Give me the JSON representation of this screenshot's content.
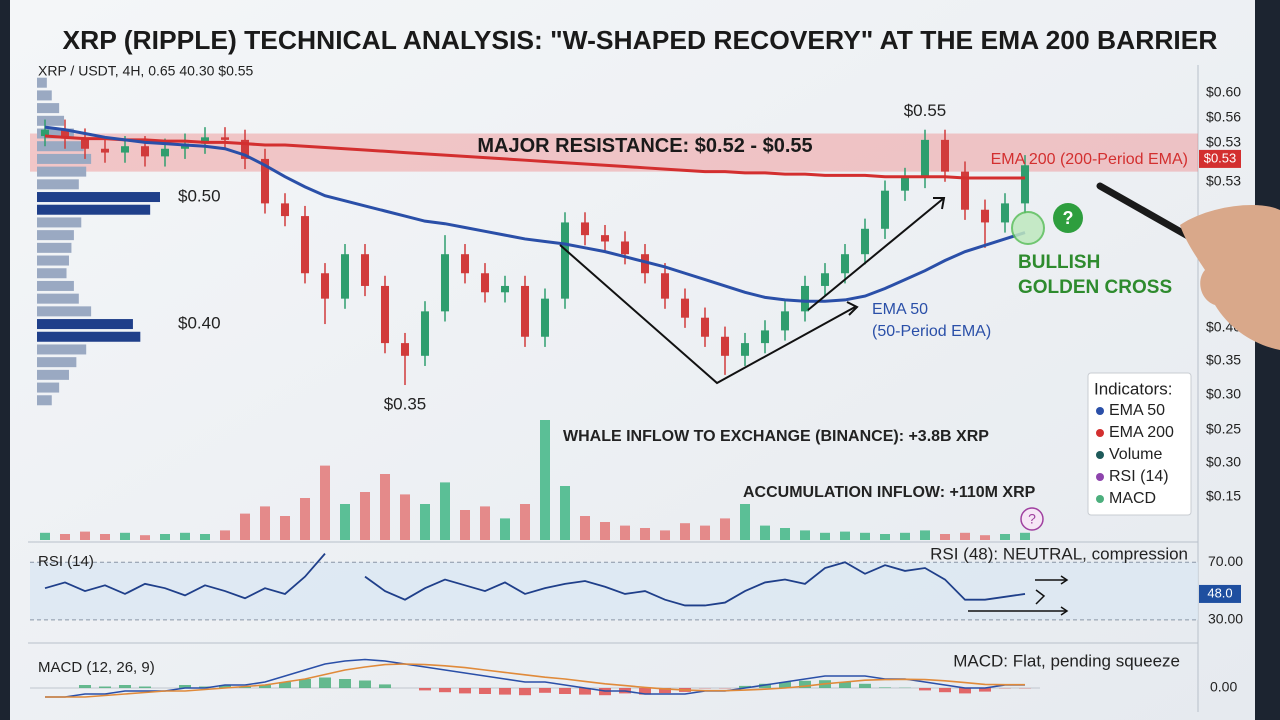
{
  "chart_data": [
    {
      "type": "candlestick",
      "title": "XRP (RIPPLE) TECHNICAL ANALYSIS: \"W-SHAPED RECOVERY\" AT THE EMA 200 BARRIER",
      "subtitle": "XRP / USDT, 4H, 0.65 40.30 $0.55",
      "ylim": [
        0.23,
        0.6
      ],
      "up_color": "#2f9e6e",
      "down_color": "#d13b3b",
      "opens": [
        0.548,
        0.553,
        0.546,
        0.538,
        0.535,
        0.54,
        0.532,
        0.538,
        0.542,
        0.547,
        0.545,
        0.53,
        0.495,
        0.485,
        0.44,
        0.42,
        0.455,
        0.43,
        0.385,
        0.375,
        0.41,
        0.455,
        0.44,
        0.425,
        0.43,
        0.39,
        0.42,
        0.48,
        0.47,
        0.465,
        0.455,
        0.44,
        0.42,
        0.405,
        0.39,
        0.375,
        0.385,
        0.395,
        0.41,
        0.43,
        0.44,
        0.455,
        0.475,
        0.505,
        0.515,
        0.545,
        0.52,
        0.49,
        0.48,
        0.495
      ],
      "highs": [
        0.561,
        0.561,
        0.554,
        0.546,
        0.548,
        0.548,
        0.546,
        0.55,
        0.555,
        0.555,
        0.553,
        0.538,
        0.503,
        0.493,
        0.448,
        0.463,
        0.463,
        0.438,
        0.393,
        0.418,
        0.47,
        0.463,
        0.448,
        0.438,
        0.438,
        0.428,
        0.488,
        0.488,
        0.478,
        0.473,
        0.463,
        0.448,
        0.428,
        0.413,
        0.398,
        0.393,
        0.403,
        0.418,
        0.438,
        0.448,
        0.463,
        0.483,
        0.513,
        0.523,
        0.553,
        0.553,
        0.528,
        0.498,
        0.503,
        0.533
      ],
      "lows": [
        0.54,
        0.538,
        0.53,
        0.527,
        0.527,
        0.524,
        0.524,
        0.53,
        0.534,
        0.537,
        0.522,
        0.487,
        0.477,
        0.432,
        0.4,
        0.412,
        0.422,
        0.377,
        0.352,
        0.367,
        0.402,
        0.432,
        0.417,
        0.417,
        0.382,
        0.382,
        0.412,
        0.462,
        0.457,
        0.447,
        0.432,
        0.412,
        0.397,
        0.382,
        0.36,
        0.367,
        0.377,
        0.387,
        0.402,
        0.422,
        0.432,
        0.447,
        0.467,
        0.497,
        0.507,
        0.512,
        0.482,
        0.46,
        0.472,
        0.487
      ],
      "closes": [
        0.553,
        0.546,
        0.538,
        0.535,
        0.54,
        0.532,
        0.538,
        0.542,
        0.547,
        0.545,
        0.53,
        0.495,
        0.485,
        0.44,
        0.42,
        0.455,
        0.43,
        0.385,
        0.375,
        0.41,
        0.455,
        0.44,
        0.425,
        0.43,
        0.39,
        0.42,
        0.48,
        0.47,
        0.465,
        0.455,
        0.44,
        0.42,
        0.405,
        0.39,
        0.375,
        0.385,
        0.395,
        0.41,
        0.43,
        0.44,
        0.455,
        0.475,
        0.505,
        0.515,
        0.545,
        0.52,
        0.49,
        0.48,
        0.495,
        0.525
      ],
      "high_labels": [
        null,
        null,
        null,
        null,
        null,
        null,
        null,
        null,
        null,
        null,
        null,
        null,
        null,
        null,
        null,
        null,
        null,
        null,
        null,
        null,
        null,
        null,
        null,
        null,
        null,
        null,
        null,
        null,
        null,
        null,
        null,
        null,
        null,
        null,
        null,
        null,
        null,
        null,
        null,
        null,
        null,
        null,
        null,
        null,
        "$0.55",
        null,
        null,
        null,
        null,
        null
      ],
      "low_labels": [
        null,
        null,
        null,
        null,
        null,
        null,
        null,
        null,
        null,
        null,
        null,
        null,
        null,
        null,
        null,
        null,
        null,
        null,
        "$0.35",
        null,
        null,
        null,
        null,
        null,
        null,
        null,
        null,
        null,
        null,
        null,
        null,
        null,
        null,
        null,
        null,
        null,
        null,
        null,
        null,
        null,
        null,
        null,
        null,
        null,
        null,
        null,
        null,
        null,
        null,
        null
      ],
      "series": [
        {
          "label": [
            "EMA 200 (200-Period EMA)"
          ],
          "color": "#d32f2f",
          "values": [
            0.548,
            0.547,
            0.546,
            0.546,
            0.545,
            0.545,
            0.544,
            0.544,
            0.543,
            0.543,
            0.542,
            0.541,
            0.541,
            0.54,
            0.539,
            0.538,
            0.537,
            0.536,
            0.535,
            0.534,
            0.533,
            0.532,
            0.531,
            0.53,
            0.529,
            0.528,
            0.527,
            0.526,
            0.525,
            0.524,
            0.523,
            0.522,
            0.521,
            0.52,
            0.52,
            0.519,
            0.519,
            0.518,
            0.518,
            0.517,
            0.517,
            0.517,
            0.516,
            0.516,
            0.516,
            0.516,
            0.515,
            0.515,
            0.515,
            0.515
          ]
        },
        {
          "label": [
            "EMA 50",
            "(50-Period EMA)"
          ],
          "color": "#2a4fa8",
          "values": [
            0.555,
            0.553,
            0.55,
            0.547,
            0.545,
            0.543,
            0.542,
            0.541,
            0.54,
            0.538,
            0.533,
            0.525,
            0.516,
            0.508,
            0.501,
            0.497,
            0.493,
            0.489,
            0.485,
            0.481,
            0.479,
            0.476,
            0.473,
            0.47,
            0.467,
            0.465,
            0.463,
            0.46,
            0.457,
            0.453,
            0.449,
            0.445,
            0.44,
            0.435,
            0.43,
            0.425,
            0.421,
            0.419,
            0.418,
            0.418,
            0.419,
            0.422,
            0.428,
            0.435,
            0.442,
            0.45,
            0.457,
            0.462,
            0.467,
            0.472
          ]
        }
      ],
      "zone": {
        "from": 0.52,
        "to": 0.55,
        "label": "MAJOR RESISTANCE: $0.52 - $0.55",
        "color": "#f08080"
      },
      "current_price": {
        "value": 0.53,
        "label": "$0.53"
      },
      "axis_labels": [
        "$0.60",
        "$0.56",
        "$0.53",
        "$0.53",
        "$0.40",
        "$0.35",
        "$0.30",
        "$0.25",
        "$0.30",
        "$0.15"
      ],
      "profile": {
        "xlim": [
          0,
          100
        ],
        "levels": [
          0.59,
          0.58,
          0.57,
          0.56,
          0.55,
          0.54,
          0.53,
          0.52,
          0.51,
          0.5,
          0.49,
          0.48,
          0.47,
          0.46,
          0.45,
          0.44,
          0.43,
          0.42,
          0.41,
          0.4,
          0.39,
          0.38,
          0.37,
          0.36,
          0.35,
          0.34
        ],
        "values": [
          8,
          12,
          18,
          22,
          30,
          38,
          44,
          40,
          34,
          100,
          92,
          36,
          30,
          28,
          26,
          24,
          30,
          34,
          44,
          78,
          84,
          40,
          32,
          26,
          18,
          12
        ],
        "colors": [
          "#9aa9c2",
          "#9aa9c2",
          "#9aa9c2",
          "#9aa9c2",
          "#9aa9c2",
          "#9aa9c2",
          "#9aa9c2",
          "#9aa9c2",
          "#9aa9c2",
          "#1f3f8a",
          "#1f3f8a",
          "#9aa9c2",
          "#9aa9c2",
          "#9aa9c2",
          "#9aa9c2",
          "#9aa9c2",
          "#9aa9c2",
          "#9aa9c2",
          "#9aa9c2",
          "#1f3f8a",
          "#1f3f8a",
          "#9aa9c2",
          "#9aa9c2",
          "#9aa9c2",
          "#9aa9c2",
          "#9aa9c2"
        ],
        "labels": [
          {
            "value": 0.5,
            "label": "$0.50"
          },
          {
            "value": 0.4,
            "label": "$0.40"
          }
        ]
      },
      "cross_label": [
        "BULLISH",
        "GOLDEN CROSS"
      ],
      "marker_texts": [
        "?",
        "?"
      ],
      "legend": {
        "title": "Indicators:",
        "items": [
          {
            "name": "EMA 50",
            "color": "#2a4fa8"
          },
          {
            "name": "EMA 200",
            "color": "#d32f2f"
          },
          {
            "name": "Volume",
            "color": "#1e5a5a"
          },
          {
            "name": "RSI (14)",
            "color": "#8e44ad"
          },
          {
            "name": "MACD",
            "color": "#4caf7d"
          }
        ]
      }
    },
    {
      "type": "bar",
      "ylim": [
        0,
        100
      ],
      "up_color": "#5bbf96",
      "down_color": "#e48a8a",
      "values": [
        6,
        5,
        7,
        5,
        6,
        4,
        5,
        6,
        5,
        8,
        22,
        28,
        20,
        35,
        62,
        30,
        40,
        55,
        38,
        30,
        48,
        25,
        28,
        18,
        30,
        100,
        45,
        20,
        15,
        12,
        10,
        8,
        14,
        12,
        18,
        30,
        12,
        10,
        8,
        6,
        7,
        6,
        5,
        6,
        8,
        5,
        6,
        4,
        5,
        6
      ],
      "annotations": [
        "WHALE INFLOW TO EXCHANGE (BINANCE): +3.8B XRP",
        "ACCUMULATION INFLOW: +110M XRP"
      ]
    },
    {
      "type": "line",
      "title": "RSI (14)",
      "color": "#1f3f8a",
      "band_color": "#dbe7f3",
      "ylim": [
        16,
        82
      ],
      "yticks": [
        {
          "value": 70,
          "label": "70.00"
        },
        {
          "value": 30,
          "label": "30.00"
        }
      ],
      "current": {
        "value": 48,
        "label": "48.0"
      },
      "values": [
        52,
        56,
        50,
        54,
        48,
        55,
        52,
        47,
        54,
        50,
        45,
        52,
        48,
        60,
        76,
        null,
        60,
        50,
        44,
        52,
        58,
        54,
        50,
        56,
        48,
        52,
        55,
        57,
        53,
        48,
        50,
        44,
        40,
        40,
        42,
        50,
        56,
        58,
        55,
        66,
        70,
        62,
        68,
        64,
        66,
        58,
        44,
        44,
        46,
        48
      ],
      "annotation": "RSI (48): NEUTRAL, compression"
    },
    {
      "type": "macd",
      "title": "MACD (12, 26, 9)",
      "ylim": [
        -0.004,
        0.012
      ],
      "yticks": [
        {
          "value": 0,
          "label": "0.00"
        }
      ],
      "macd_color": "#2a4fa8",
      "signal_color": "#e08a3a",
      "up_color": "#4caf7d",
      "down_color": "#e05050",
      "macd": [
        -0.003,
        -0.003,
        -0.002,
        -0.002,
        -0.001,
        -0.001,
        -0.001,
        0,
        0,
        0.001,
        0.001,
        0.002,
        0.004,
        0.006,
        0.008,
        0.009,
        0.0095,
        0.009,
        0.008,
        0.007,
        0.006,
        0.005,
        0.004,
        0.003,
        0.002,
        0.002,
        0.001,
        0,
        -0.001,
        -0.001,
        -0.002,
        -0.002,
        -0.002,
        -0.001,
        -0.001,
        0,
        0.001,
        0.002,
        0.003,
        0.004,
        0.004,
        0.004,
        0.003,
        0.003,
        0.002,
        0.001,
        0,
        0,
        0.001,
        0.001
      ],
      "signal": [
        -0.003,
        -0.003,
        -0.003,
        -0.0025,
        -0.002,
        -0.0015,
        -0.001,
        -0.001,
        -0.0005,
        0,
        0.0005,
        0.001,
        0.002,
        0.003,
        0.0045,
        0.006,
        0.007,
        0.0078,
        0.008,
        0.0078,
        0.0074,
        0.0068,
        0.006,
        0.0052,
        0.0044,
        0.0036,
        0.003,
        0.0022,
        0.0014,
        0.0008,
        0.0002,
        -0.0003,
        -0.0007,
        -0.0009,
        -0.0009,
        -0.0007,
        -0.0004,
        0,
        0.0006,
        0.0014,
        0.002,
        0.0026,
        0.0028,
        0.0029,
        0.0028,
        0.0024,
        0.0018,
        0.0012,
        0.0011,
        0.0011
      ],
      "histogram": [
        0,
        0,
        0.001,
        0.0005,
        0.001,
        0.0005,
        0,
        0.001,
        0.0005,
        0.001,
        0.0005,
        0.001,
        0.002,
        0.003,
        0.0035,
        0.003,
        0.0025,
        0.0012,
        0,
        -0.0008,
        -0.0014,
        -0.0018,
        -0.002,
        -0.0022,
        -0.0024,
        -0.0016,
        -0.002,
        -0.0022,
        -0.0024,
        -0.0018,
        -0.0022,
        -0.0017,
        -0.0013,
        -0.0001,
        -0.0001,
        0.0007,
        0.0014,
        0.002,
        0.0024,
        0.0026,
        0.002,
        0.0014,
        0.0002,
        0.0001,
        -0.0008,
        -0.0014,
        -0.0018,
        -0.0012,
        -0.0001,
        -0.0001
      ],
      "annotation": "MACD: Flat, pending squeeze"
    }
  ]
}
